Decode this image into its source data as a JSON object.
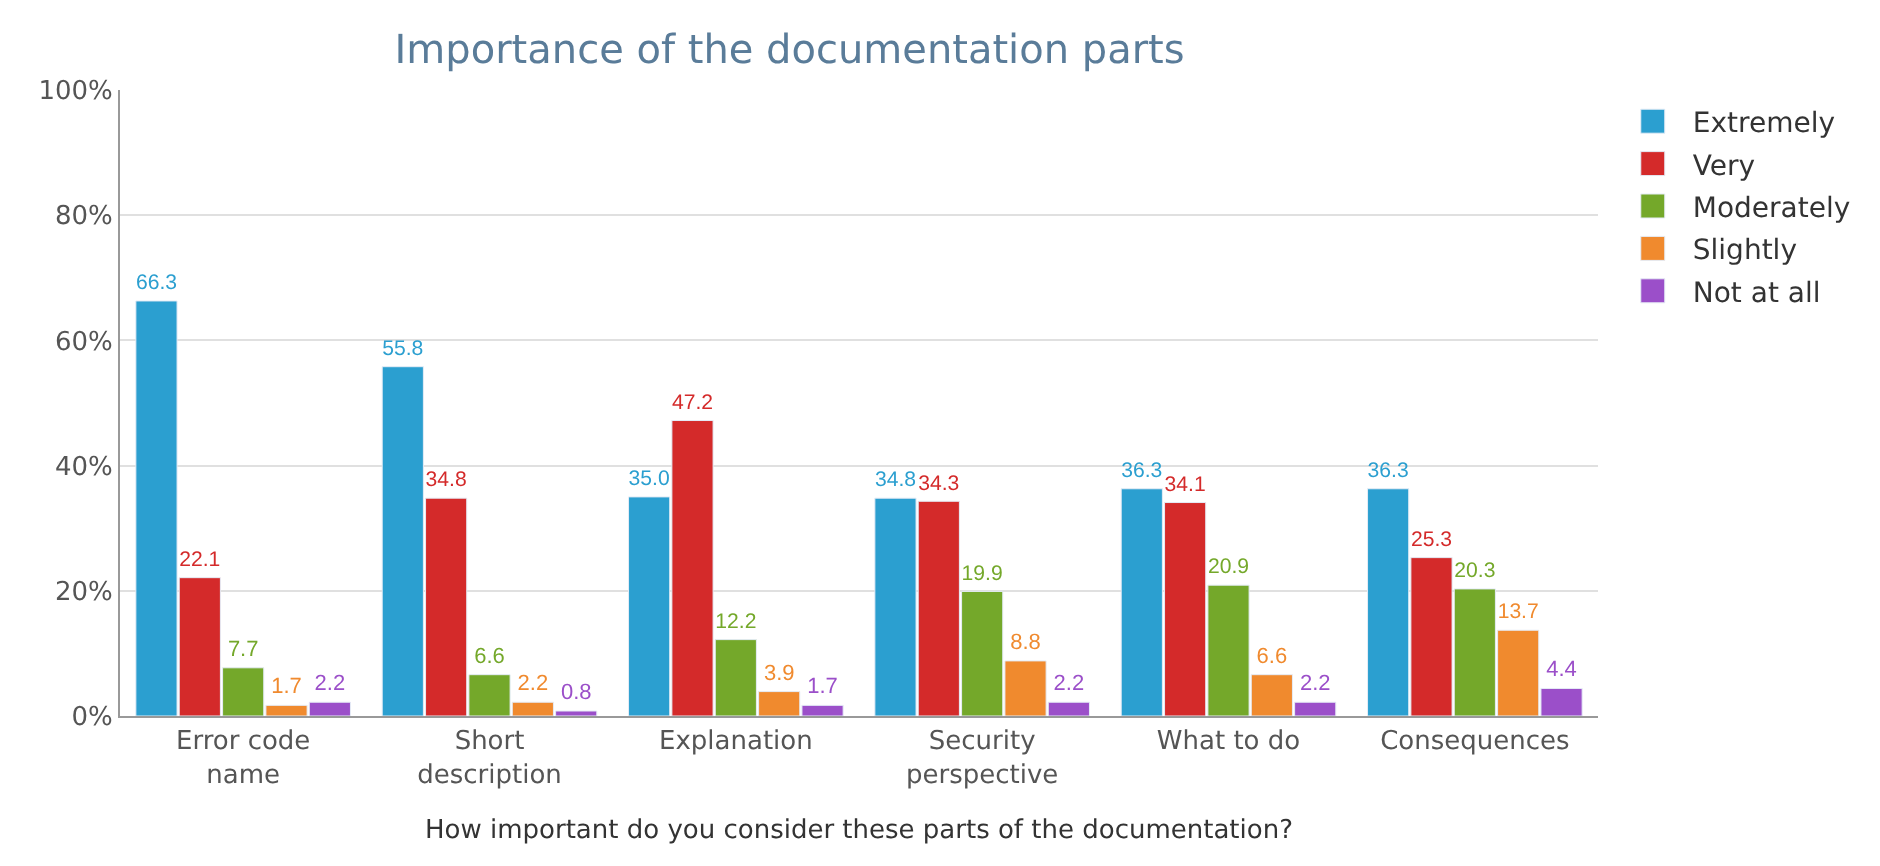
{
  "chart_data": {
    "type": "bar",
    "title": "Importance of the documentation parts",
    "xlabel": "How important do you consider these parts of the documentation?",
    "categories": [
      "Error code name",
      "Short description",
      "Explanation",
      "Security perspective",
      "What to do",
      "Consequences"
    ],
    "series": [
      {
        "name": "Extremely",
        "color": "#2b9fd0",
        "values": [
          66.3,
          55.8,
          35.0,
          34.8,
          36.3,
          36.3
        ],
        "value_labels": [
          "66.3",
          "55.8",
          "35.0",
          "34.8",
          "36.3",
          "36.3"
        ]
      },
      {
        "name": "Very",
        "color": "#d42a2a",
        "values": [
          22.1,
          34.8,
          47.2,
          34.3,
          34.1,
          25.3
        ]
      },
      {
        "name": "Moderately",
        "color": "#74a82a",
        "values": [
          7.7,
          6.6,
          12.2,
          19.9,
          20.9,
          20.3
        ]
      },
      {
        "name": "Slightly",
        "color": "#f08a2e",
        "values": [
          1.7,
          2.2,
          3.9,
          8.8,
          6.6,
          13.7
        ]
      },
      {
        "name": "Not at all",
        "color": "#9b4fc9",
        "values": [
          2.2,
          0.8,
          1.7,
          2.2,
          2.2,
          4.4
        ]
      }
    ],
    "ylim": [
      0,
      100
    ],
    "yticks": [
      {
        "value": 0,
        "label": "0%"
      },
      {
        "value": 20,
        "label": "20%"
      },
      {
        "value": 40,
        "label": "40%"
      },
      {
        "value": 60,
        "label": "60%"
      },
      {
        "value": 80,
        "label": "80%"
      },
      {
        "value": 100,
        "label": "100%"
      }
    ],
    "grid": "y",
    "legend": "top right",
    "data_labels": true
  }
}
